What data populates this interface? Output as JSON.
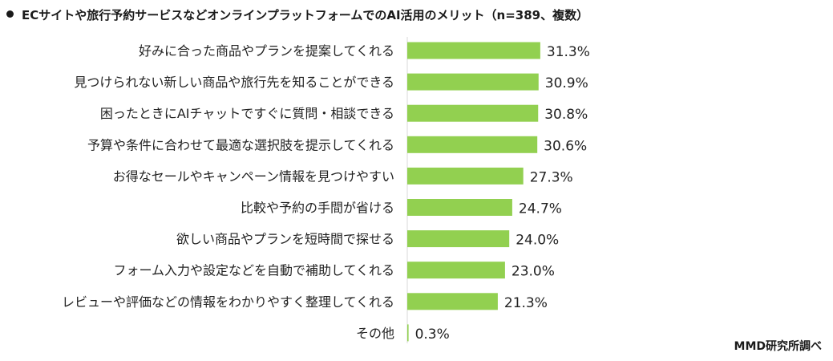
{
  "title": "ECサイトや旅行予約サービスなどオンラインプラットフォームでのAI活用のメリット（n=389、複数）",
  "source": "MMD研究所調べ",
  "colors": {
    "bar": "#92d050",
    "axis": "#d9d9d9",
    "text": "#222222"
  },
  "chart_data": {
    "type": "bar",
    "orientation": "horizontal",
    "title": "ECサイトや旅行予約サービスなどオンラインプラットフォームでのAI活用のメリット（n=389、複数）",
    "categories": [
      "好みに合った商品やプランを提案してくれる",
      "見つけられない新しい商品や旅行先を知ることができる",
      "困ったときにAIチャットですぐに質問・相談できる",
      "予算や条件に合わせて最適な選択肢を提示してくれる",
      "お得なセールやキャンペーン情報を見つけやすい",
      "比較や予約の手間が省ける",
      "欲しい商品やプランを短時間で探せる",
      "フォーム入力や設定などを自動で補助してくれる",
      "レビューや評価などの情報をわかりやすく整理してくれる",
      "その他"
    ],
    "values": [
      31.3,
      30.9,
      30.8,
      30.6,
      27.3,
      24.7,
      24.0,
      23.0,
      21.3,
      0.3
    ],
    "value_labels": [
      "31.3%",
      "30.9%",
      "30.8%",
      "30.6%",
      "27.3%",
      "24.7%",
      "24.0%",
      "23.0%",
      "21.3%",
      "0.3%"
    ],
    "unit": "%",
    "xlim": [
      0,
      100
    ],
    "grid": false,
    "legend": "none"
  }
}
